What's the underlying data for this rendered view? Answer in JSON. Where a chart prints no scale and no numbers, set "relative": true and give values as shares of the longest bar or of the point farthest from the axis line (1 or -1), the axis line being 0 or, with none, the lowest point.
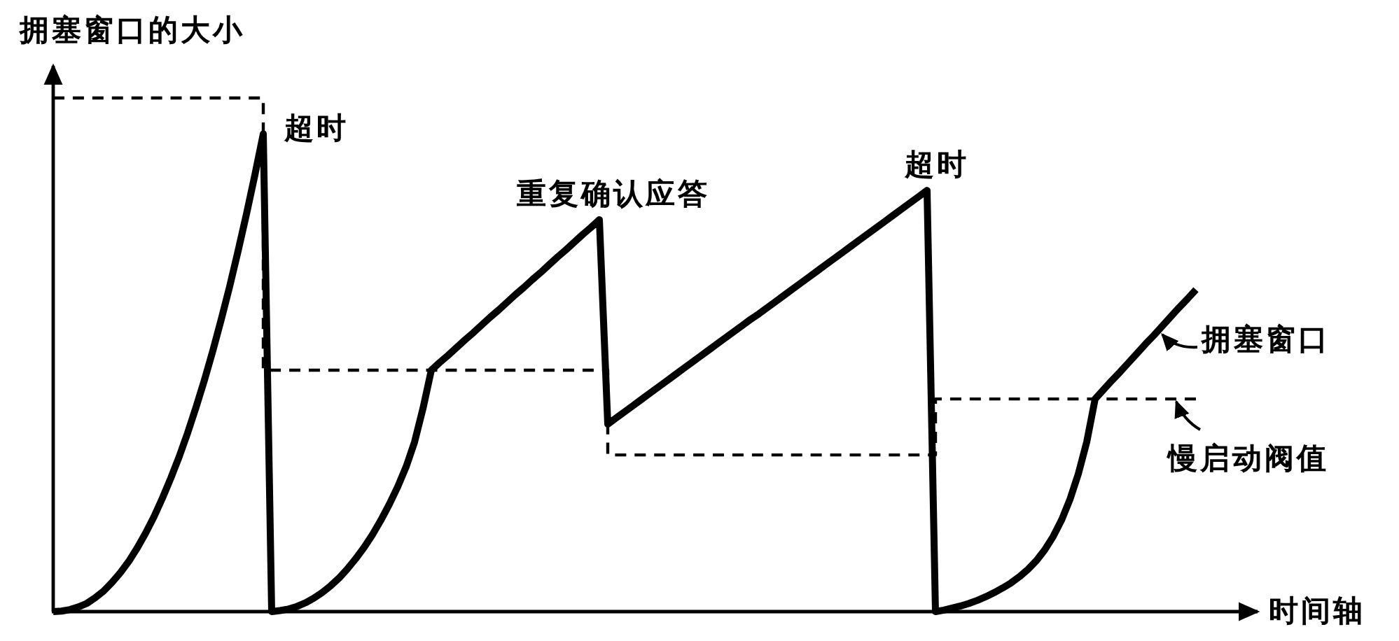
{
  "chart_data": {
    "type": "line",
    "relative": true,
    "legend": "right",
    "ylabel": "拥塞窗口的大小",
    "xlabel": "时间轴",
    "annotations": [
      "超时",
      "重复确认应答",
      "超时"
    ],
    "categories": [
      null,
      null,
      null,
      null,
      null,
      null,
      null,
      null,
      null,
      null,
      null,
      null,
      null,
      null,
      null,
      null,
      null,
      null,
      null,
      null,
      null,
      null,
      null,
      null,
      null,
      null,
      null,
      null,
      null,
      null,
      null,
      null,
      null,
      null,
      null,
      null,
      null,
      null,
      null,
      null,
      null,
      null,
      null,
      null,
      null,
      null,
      null,
      null,
      null,
      null,
      null,
      null,
      null,
      null,
      null,
      null,
      null,
      null,
      null,
      null,
      null,
      null,
      null,
      null,
      null,
      null,
      null,
      null,
      null,
      null,
      null,
      null,
      null,
      null,
      null,
      null,
      null,
      null,
      null,
      null,
      null,
      null,
      null,
      null,
      null,
      null,
      null,
      null,
      null,
      null,
      null,
      null,
      null,
      null,
      null,
      null,
      null,
      null,
      null,
      null,
      null,
      null,
      null,
      null,
      null,
      null,
      null,
      null,
      null,
      null,
      null,
      null,
      null,
      null,
      null,
      null,
      null,
      null,
      null,
      null,
      null,
      null,
      null,
      null,
      null,
      null,
      null,
      null,
      null,
      null,
      null,
      null,
      null,
      null,
      null,
      null,
      null
    ],
    "series": [
      {
        "name": "拥塞窗口",
        "color": "#000000",
        "line_style": "solid",
        "values": [
          0,
          0.001,
          0.004,
          0.009,
          0.016,
          0.027,
          0.04,
          0.057,
          0.076,
          0.098,
          0.124,
          0.153,
          0.185,
          0.221,
          0.26,
          0.302,
          0.348,
          0.398,
          0.451,
          0.508,
          0.569,
          0.633,
          0.702,
          0.774,
          0.85,
          0.93,
          0,
          0.002,
          0.005,
          0.01,
          0.017,
          0.026,
          0.037,
          0.05,
          0.065,
          0.083,
          0.103,
          0.125,
          0.15,
          0.178,
          0.209,
          0.243,
          0.282,
          0.33,
          0.395,
          0.47,
          0.485,
          0.499,
          0.514,
          0.529,
          0.543,
          0.558,
          0.573,
          0.587,
          0.602,
          0.617,
          0.631,
          0.646,
          0.66,
          0.675,
          0.69,
          0.704,
          0.719,
          0.734,
          0.748,
          0.763,
          0.365,
          0.377,
          0.389,
          0.401,
          0.413,
          0.425,
          0.437,
          0.449,
          0.461,
          0.473,
          0.485,
          0.497,
          0.509,
          0.521,
          0.533,
          0.545,
          0.557,
          0.569,
          0.58,
          0.592,
          0.604,
          0.616,
          0.628,
          0.64,
          0.652,
          0.664,
          0.676,
          0.688,
          0.7,
          0.712,
          0.724,
          0.736,
          0.748,
          0.76,
          0.772,
          0.784,
          0.796,
          0.808,
          0.82,
          0,
          0.003,
          0.007,
          0.011,
          0.016,
          0.022,
          0.029,
          0.037,
          0.046,
          0.056,
          0.068,
          0.082,
          0.099,
          0.12,
          0.146,
          0.178,
          0.218,
          0.268,
          0.33,
          0.414,
          0.432,
          0.45,
          0.467,
          0.485,
          0.503,
          0.521,
          0.538,
          0.556,
          0.574,
          0.592,
          0.609,
          0.627
        ]
      },
      {
        "name": "慢启动阀值",
        "type": "step",
        "color": "#000000",
        "line_style": "dashed",
        "values": [
          1,
          1,
          1,
          1,
          1,
          1,
          1,
          1,
          1,
          1,
          1,
          1,
          1,
          1,
          1,
          1,
          1,
          1,
          1,
          1,
          1,
          1,
          1,
          1,
          1,
          0.47,
          0.47,
          0.47,
          0.47,
          0.47,
          0.47,
          0.47,
          0.47,
          0.47,
          0.47,
          0.47,
          0.47,
          0.47,
          0.47,
          0.47,
          0.47,
          0.47,
          0.47,
          0.47,
          0.47,
          0.47,
          0.47,
          0.47,
          0.47,
          0.47,
          0.47,
          0.47,
          0.47,
          0.47,
          0.47,
          0.47,
          0.47,
          0.47,
          0.47,
          0.47,
          0.47,
          0.47,
          0.47,
          0.47,
          0.47,
          0.47,
          0.305,
          0.305,
          0.305,
          0.305,
          0.305,
          0.305,
          0.305,
          0.305,
          0.305,
          0.305,
          0.305,
          0.305,
          0.305,
          0.305,
          0.305,
          0.305,
          0.305,
          0.305,
          0.305,
          0.305,
          0.305,
          0.305,
          0.305,
          0.305,
          0.305,
          0.305,
          0.305,
          0.305,
          0.305,
          0.305,
          0.305,
          0.305,
          0.305,
          0.305,
          0.305,
          0.305,
          0.305,
          0.305,
          0.305,
          0.414,
          0.414,
          0.414,
          0.414,
          0.414,
          0.414,
          0.414,
          0.414,
          0.414,
          0.414,
          0.414,
          0.414,
          0.414,
          0.414,
          0.414,
          0.414,
          0.414,
          0.414,
          0.414,
          0.414,
          0.414,
          0.414,
          0.414,
          0.414,
          0.414,
          0.414,
          0.414,
          0.414,
          0.414,
          0.414,
          0.414,
          0.414
        ]
      }
    ]
  }
}
